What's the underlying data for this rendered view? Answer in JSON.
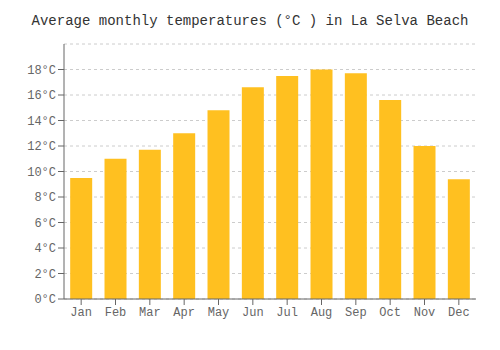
{
  "chart_data": {
    "type": "bar",
    "title": "Average monthly temperatures (°C ) in La Selva Beach",
    "categories": [
      "Jan",
      "Feb",
      "Mar",
      "Apr",
      "May",
      "Jun",
      "Jul",
      "Aug",
      "Sep",
      "Oct",
      "Nov",
      "Dec"
    ],
    "values": [
      9.5,
      11.0,
      11.7,
      13.0,
      14.8,
      16.6,
      17.5,
      18.0,
      17.7,
      15.6,
      12.0,
      9.4
    ],
    "color": "#FFC020",
    "ylim": [
      0,
      20
    ],
    "yticks": [
      {
        "value": 0,
        "label": "0°C"
      },
      {
        "value": 2,
        "label": "2°C"
      },
      {
        "value": 4,
        "label": "4°C"
      },
      {
        "value": 6,
        "label": "6°C"
      },
      {
        "value": 8,
        "label": "8°C"
      },
      {
        "value": 10,
        "label": "10°C"
      },
      {
        "value": 12,
        "label": "12°C"
      },
      {
        "value": 14,
        "label": "14°C"
      },
      {
        "value": 16,
        "label": "16°C"
      },
      {
        "value": 18,
        "label": "18°C"
      }
    ],
    "grid": true
  }
}
